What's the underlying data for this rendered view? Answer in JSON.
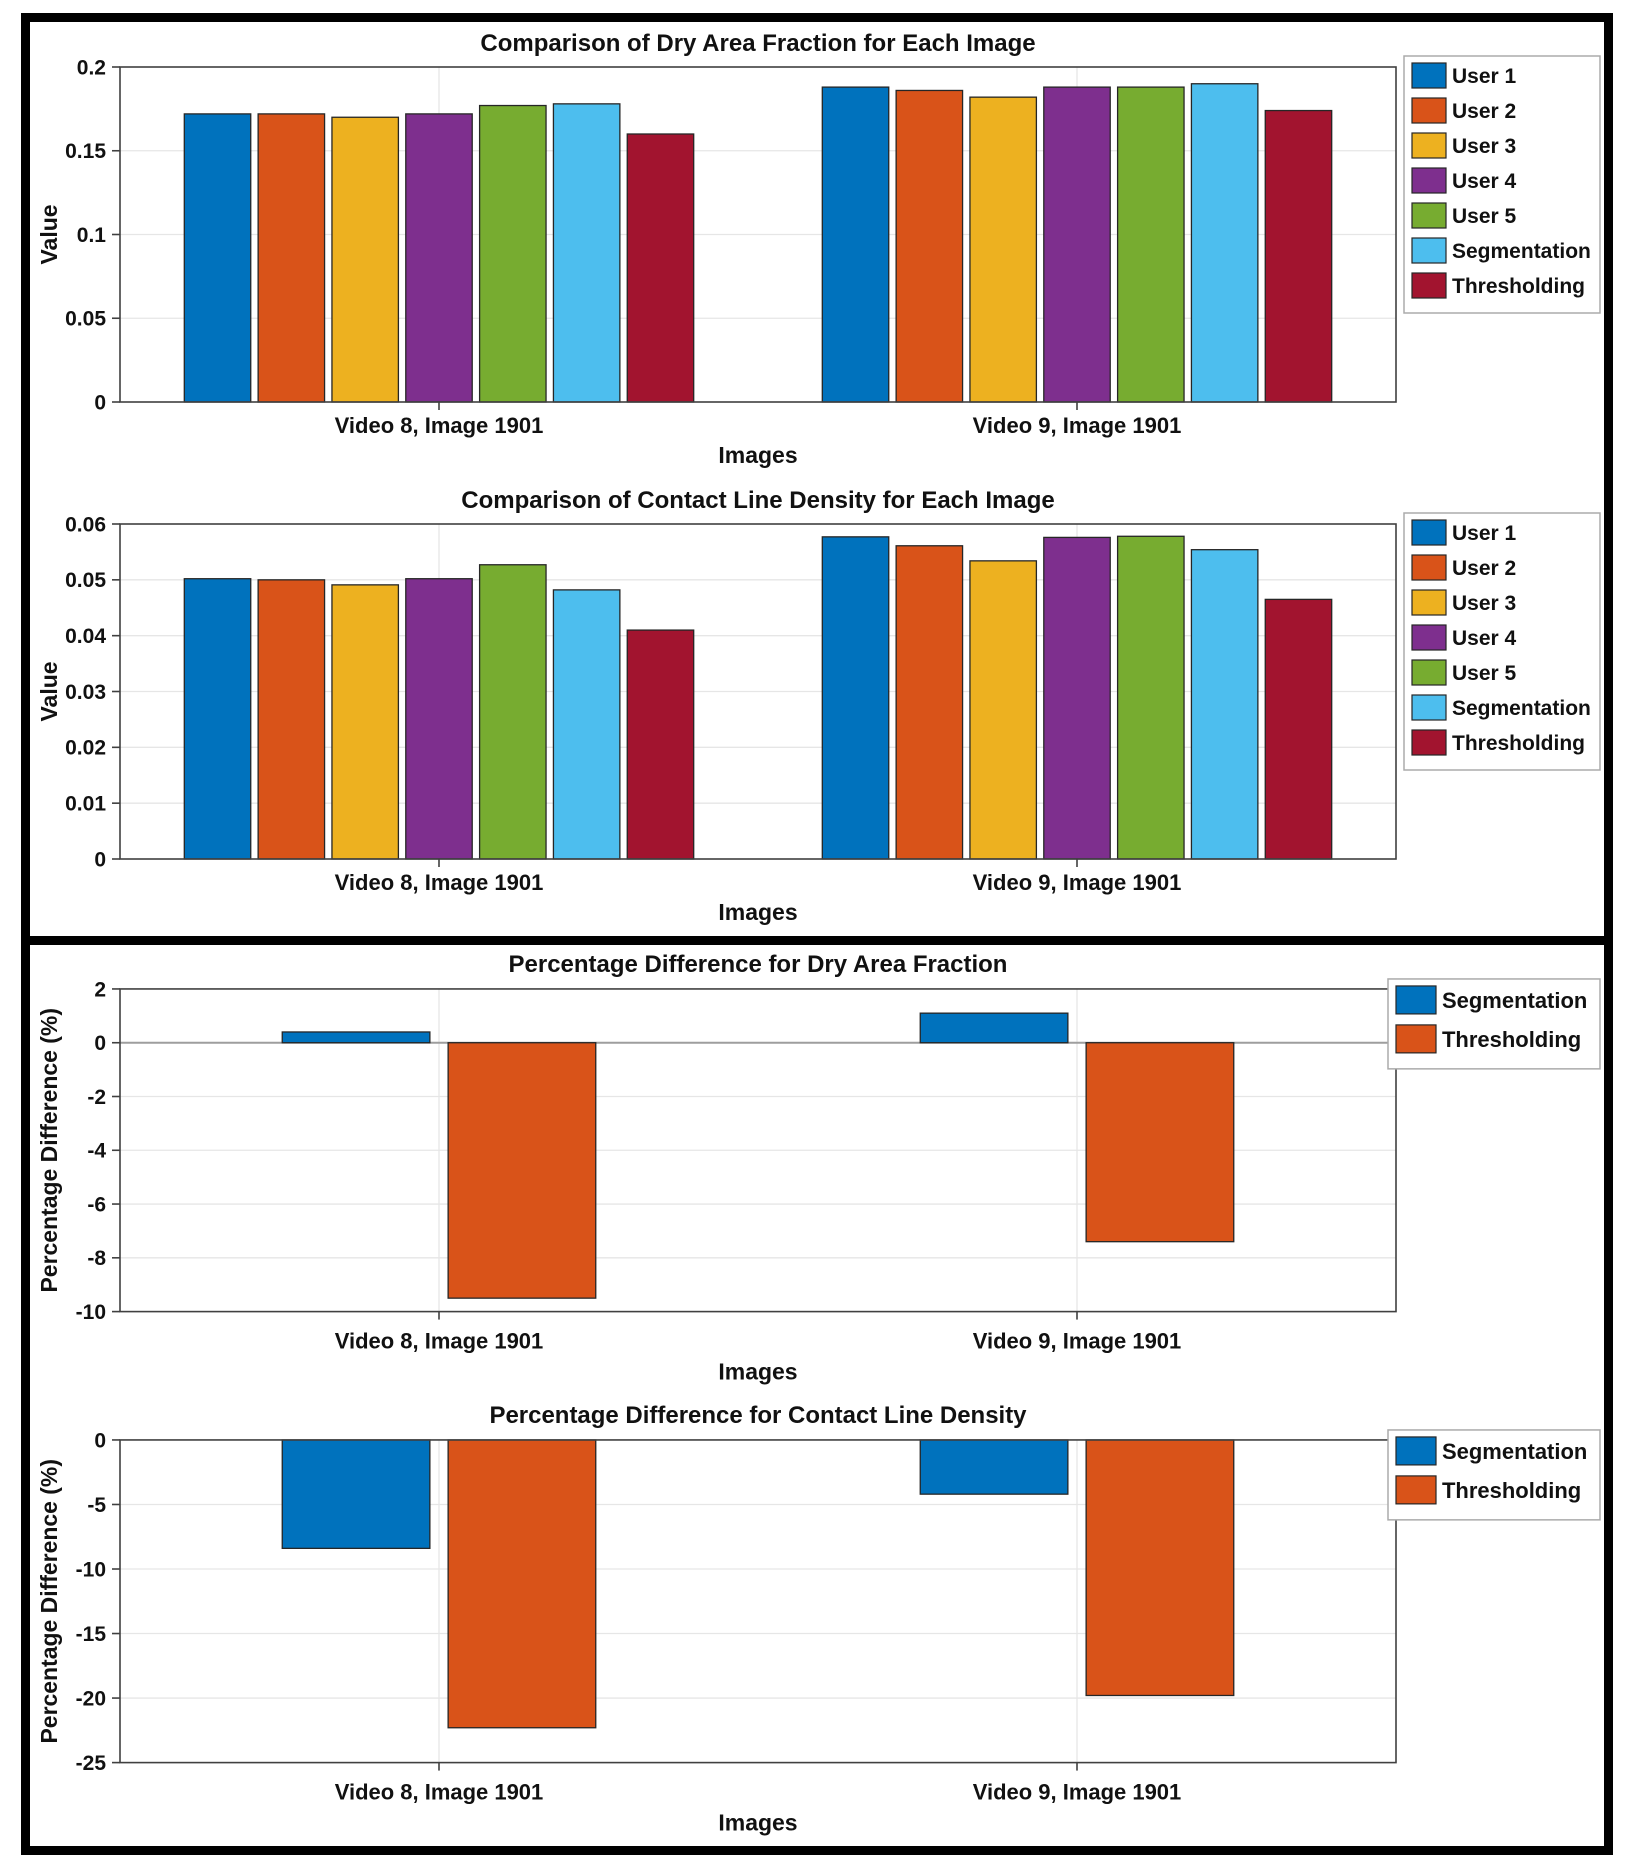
{
  "chart_data": [
    {
      "type": "bar",
      "title": "Comparison of Dry Area Fraction for Each Image",
      "xlabel": "Images",
      "ylabel": "Value",
      "categories": [
        "Video 8, Image 1901",
        "Video 9, Image 1901"
      ],
      "series": [
        {
          "name": "User 1",
          "color": "#0072BD",
          "values": [
            0.172,
            0.188
          ]
        },
        {
          "name": "User 2",
          "color": "#D95319",
          "values": [
            0.172,
            0.186
          ]
        },
        {
          "name": "User 3",
          "color": "#EDB120",
          "values": [
            0.17,
            0.182
          ]
        },
        {
          "name": "User 4",
          "color": "#7E2F8E",
          "values": [
            0.172,
            0.188
          ]
        },
        {
          "name": "User 5",
          "color": "#77AC30",
          "values": [
            0.177,
            0.188
          ]
        },
        {
          "name": "Segmentation",
          "color": "#4DBEEE",
          "values": [
            0.178,
            0.19
          ]
        },
        {
          "name": "Thresholding",
          "color": "#A2142F",
          "values": [
            0.16,
            0.174
          ]
        }
      ],
      "ylim": [
        0,
        0.2
      ],
      "yticks": [
        0,
        0.05,
        0.1,
        0.15,
        0.2
      ],
      "ytick_labels": [
        "0",
        "0.05",
        "0.1",
        "0.15",
        "0.2"
      ],
      "grid": true,
      "legend_position": "outside-right"
    },
    {
      "type": "bar",
      "title": "Comparison of Contact Line Density for Each Image",
      "xlabel": "Images",
      "ylabel": "Value",
      "categories": [
        "Video 8, Image 1901",
        "Video 9, Image 1901"
      ],
      "series": [
        {
          "name": "User 1",
          "color": "#0072BD",
          "values": [
            0.0502,
            0.0577
          ]
        },
        {
          "name": "User 2",
          "color": "#D95319",
          "values": [
            0.05,
            0.0561
          ]
        },
        {
          "name": "User 3",
          "color": "#EDB120",
          "values": [
            0.0491,
            0.0534
          ]
        },
        {
          "name": "User 4",
          "color": "#7E2F8E",
          "values": [
            0.0502,
            0.0576
          ]
        },
        {
          "name": "User 5",
          "color": "#77AC30",
          "values": [
            0.0527,
            0.0578
          ]
        },
        {
          "name": "Segmentation",
          "color": "#4DBEEE",
          "values": [
            0.0482,
            0.0554
          ]
        },
        {
          "name": "Thresholding",
          "color": "#A2142F",
          "values": [
            0.041,
            0.0465
          ]
        }
      ],
      "ylim": [
        0,
        0.06
      ],
      "yticks": [
        0,
        0.01,
        0.02,
        0.03,
        0.04,
        0.05,
        0.06
      ],
      "ytick_labels": [
        "0",
        "0.01",
        "0.02",
        "0.03",
        "0.04",
        "0.05",
        "0.06"
      ],
      "grid": true,
      "legend_position": "outside-right"
    },
    {
      "type": "bar",
      "title": "Percentage Difference for Dry Area Fraction",
      "xlabel": "Images",
      "ylabel": "Percentage Difference (%)",
      "categories": [
        "Video 8, Image 1901",
        "Video 9, Image 1901"
      ],
      "series": [
        {
          "name": "Segmentation",
          "color": "#0072BD",
          "values": [
            0.4,
            1.1
          ]
        },
        {
          "name": "Thresholding",
          "color": "#D95319",
          "values": [
            -9.5,
            -7.4
          ]
        }
      ],
      "ylim": [
        -10,
        2
      ],
      "yticks": [
        -10,
        -8,
        -6,
        -4,
        -2,
        0,
        2
      ],
      "ytick_labels": [
        "-10",
        "-8",
        "-6",
        "-4",
        "-2",
        "0",
        "2"
      ],
      "grid": true,
      "legend_position": "outside-right"
    },
    {
      "type": "bar",
      "title": "Percentage Difference for Contact Line Density",
      "xlabel": "Images",
      "ylabel": "Percentage Difference (%)",
      "categories": [
        "Video 8, Image 1901",
        "Video 9, Image 1901"
      ],
      "series": [
        {
          "name": "Segmentation",
          "color": "#0072BD",
          "values": [
            -8.4,
            -4.2
          ]
        },
        {
          "name": "Thresholding",
          "color": "#D95319",
          "values": [
            -22.3,
            -19.8
          ]
        }
      ],
      "ylim": [
        -25,
        0
      ],
      "yticks": [
        -25,
        -20,
        -15,
        -10,
        -5,
        0
      ],
      "ytick_labels": [
        "-25",
        "-20",
        "-15",
        "-10",
        "-5",
        "0"
      ],
      "grid": true,
      "legend_position": "outside-right"
    }
  ]
}
